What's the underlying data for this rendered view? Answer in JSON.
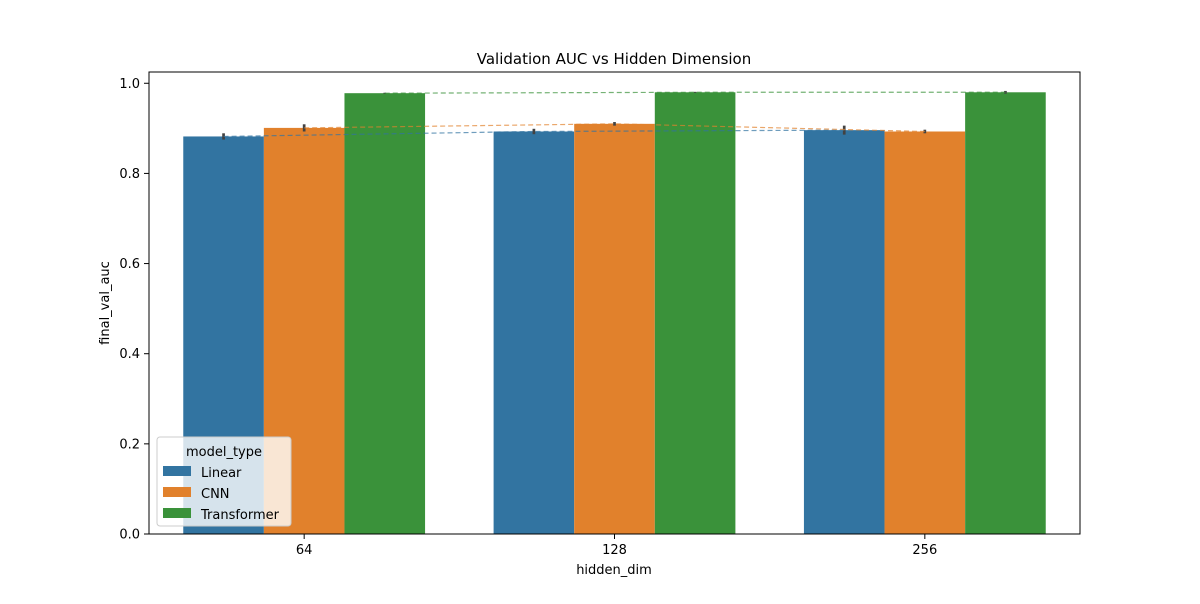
{
  "chart_data": {
    "type": "bar",
    "title": "Validation AUC vs Hidden Dimension",
    "xlabel": "hidden_dim",
    "ylabel": "final_val_auc",
    "categories": [
      "64",
      "128",
      "256"
    ],
    "ylim": [
      0,
      1.025
    ],
    "yticks": [
      0.0,
      0.2,
      0.4,
      0.6,
      0.8,
      1.0
    ],
    "ytick_labels": [
      "0.0",
      "0.2",
      "0.4",
      "0.6",
      "0.8",
      "1.0"
    ],
    "grid": false,
    "legend": {
      "title": "model_type",
      "placement": "lower left"
    },
    "series": [
      {
        "name": "Linear",
        "color": "#3274a1",
        "values": [
          0.882,
          0.893,
          0.896
        ],
        "error": [
          0.007,
          0.006,
          0.01
        ]
      },
      {
        "name": "CNN",
        "color": "#e1812c",
        "values": [
          0.901,
          0.91,
          0.893
        ],
        "error": [
          0.008,
          0.004,
          0.004
        ]
      },
      {
        "name": "Transformer",
        "color": "#3a923a",
        "values": [
          0.978,
          0.98,
          0.98
        ],
        "error": [
          0.001,
          0.001,
          0.003
        ]
      }
    ],
    "trend_lines": {
      "style": "dashed",
      "series": [
        "Linear",
        "CNN",
        "Transformer"
      ]
    }
  }
}
